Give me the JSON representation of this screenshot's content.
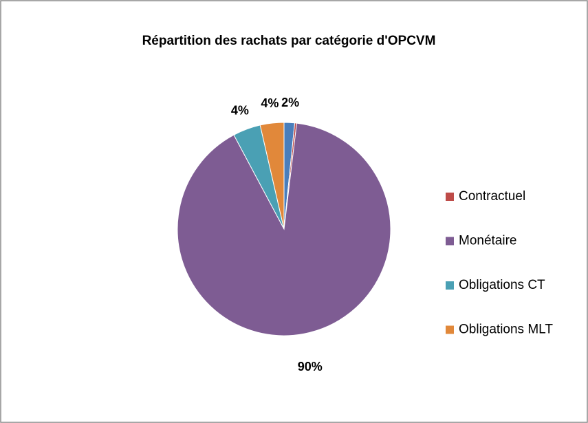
{
  "chart_data": {
    "type": "pie",
    "title": "Répartition des rachats par catégorie d'OPCVM",
    "categories": [
      null,
      "Contractuel",
      "Monétaire",
      "Obligations CT",
      "Obligations MLT"
    ],
    "values": [
      1.6,
      0.3,
      90.3,
      4.2,
      3.6
    ],
    "value_labels": [
      "2%",
      null,
      "90%",
      "4%",
      "4%"
    ],
    "colors": [
      "#4a7ebb",
      "#be4b48",
      "#7e5c93",
      "#4aa0b4",
      "#e1883a"
    ],
    "legend": "right"
  }
}
